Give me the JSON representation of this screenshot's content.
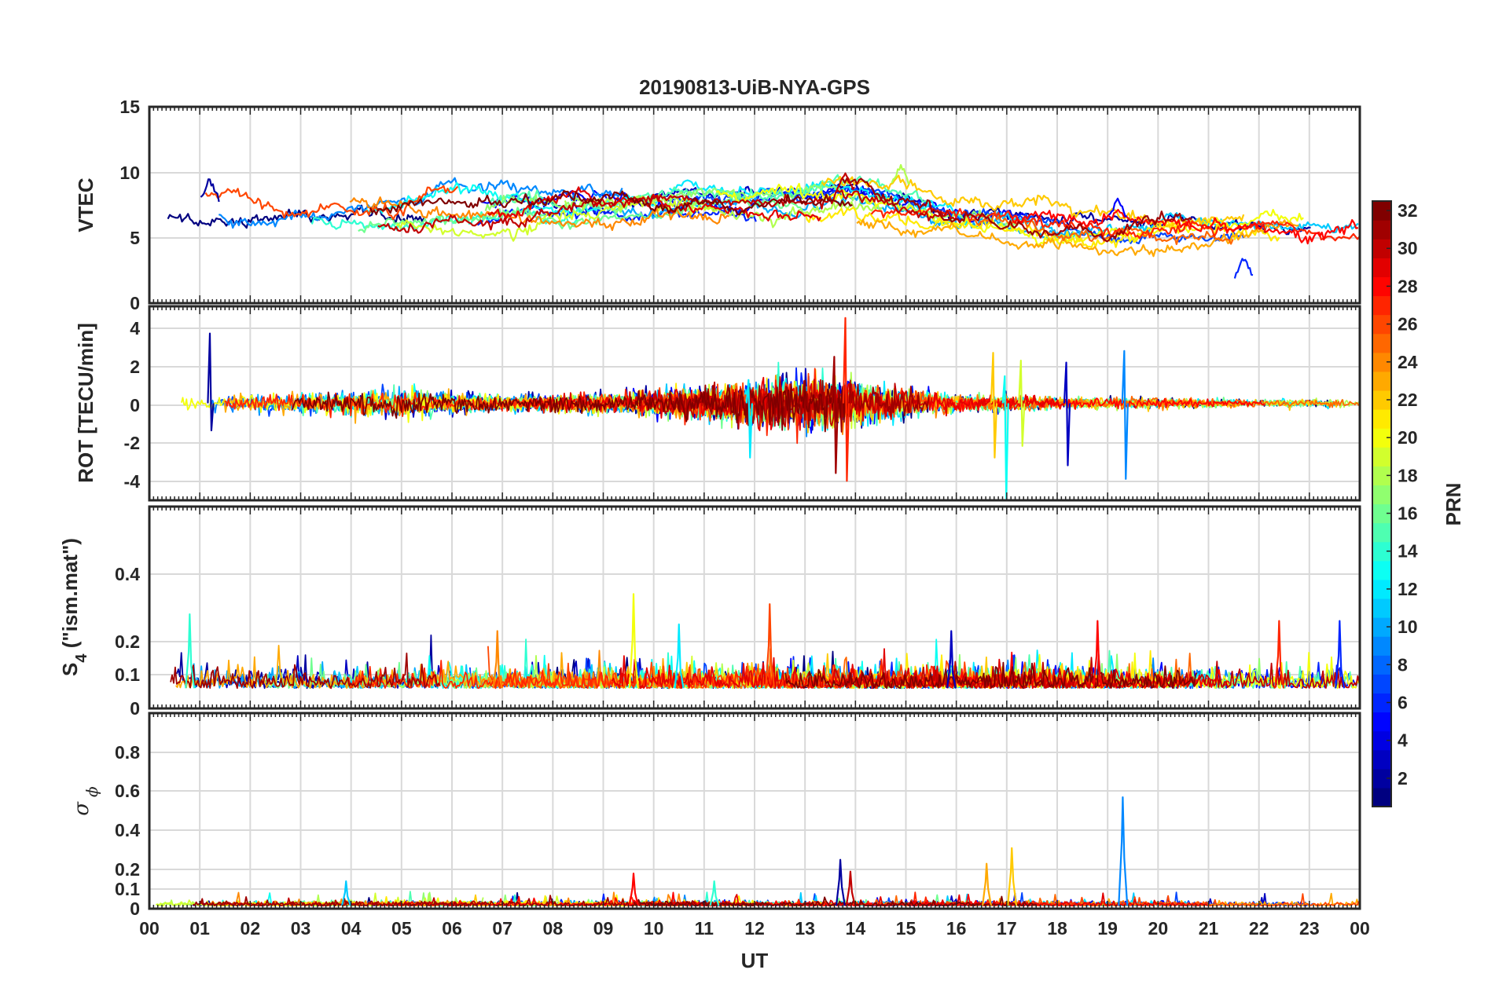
{
  "title": "20190813-UiB-NYA-GPS",
  "x_axis": {
    "label": "UT",
    "ticks": [
      "00",
      "01",
      "02",
      "03",
      "04",
      "05",
      "06",
      "07",
      "08",
      "09",
      "10",
      "11",
      "12",
      "13",
      "14",
      "15",
      "16",
      "17",
      "18",
      "19",
      "20",
      "21",
      "22",
      "23",
      "00"
    ]
  },
  "colorbar": {
    "label": "PRN",
    "ticks": [
      "2",
      "4",
      "6",
      "8",
      "10",
      "12",
      "14",
      "16",
      "18",
      "20",
      "22",
      "24",
      "26",
      "28",
      "30",
      "32"
    ],
    "range": [
      1,
      32
    ],
    "colormap": "jet"
  },
  "panels": [
    {
      "id": "vtec",
      "ylabel": "VTEC",
      "ylabel_parts": [
        "VTEC"
      ],
      "ylim": [
        0,
        15
      ],
      "yticks": [
        "0",
        "5",
        "10",
        "15"
      ]
    },
    {
      "id": "rot",
      "ylabel": "ROT [TECU/min]",
      "ylabel_parts": [
        "ROT [TECU/min]"
      ],
      "ylim": [
        -5,
        5
      ],
      "yticks": [
        "-4",
        "-2",
        "0",
        "2",
        "4"
      ]
    },
    {
      "id": "s4",
      "ylabel": "S4 (\"ism.mat\")",
      "ylabel_parts": [
        "S",
        "4",
        " (\"ism.mat\")"
      ],
      "ylim": [
        0,
        0.6
      ],
      "yticks": [
        "0",
        "0.1",
        "0.2",
        "0.4"
      ]
    },
    {
      "id": "sigphi",
      "ylabel": "σ ϕ",
      "ylabel_parts": [
        "σ",
        "ϕ"
      ],
      "ylim": [
        0,
        1
      ],
      "yticks": [
        "0",
        "0.1",
        "0.2",
        "0.4",
        "0.6",
        "0.8"
      ]
    }
  ],
  "chart_data": [
    {
      "type": "line",
      "panel": "vtec",
      "title": "20190813-UiB-NYA-GPS",
      "ylabel": "VTEC",
      "xlabel": "",
      "xlim": [
        0,
        24
      ],
      "ylim": [
        0,
        15
      ],
      "grid": true,
      "color_by": "PRN (jet colormap, 1-32)",
      "baseline_level": [
        [
          0,
          6.5
        ],
        [
          2,
          6.5
        ],
        [
          4,
          6.8
        ],
        [
          6,
          7.2
        ],
        [
          8,
          7.0
        ],
        [
          10,
          7.4
        ],
        [
          12,
          7.4
        ],
        [
          14,
          7.8
        ],
        [
          16,
          6.6
        ],
        [
          18,
          5.6
        ],
        [
          20,
          5.7
        ],
        [
          22,
          5.8
        ],
        [
          24,
          5.3
        ]
      ],
      "spread": 1.3,
      "highlights": [
        {
          "prn": 2,
          "x": 1.2,
          "y": 9.4
        },
        {
          "prn": 18,
          "x": 14.9,
          "y": 10.6
        },
        {
          "prn": 30,
          "x": 13.8,
          "y": 10.1
        },
        {
          "prn": 5,
          "x": 19.2,
          "y": 8.0
        },
        {
          "prn": 6,
          "x": 21.7,
          "y": 3.5
        }
      ]
    },
    {
      "type": "line",
      "panel": "rot",
      "ylabel": "ROT [TECU/min]",
      "xlim": [
        0,
        24
      ],
      "ylim": [
        -5,
        5
      ],
      "grid": true,
      "color_by": "PRN (jet colormap, 1-32)",
      "noise_amplitude": [
        [
          0,
          0.25
        ],
        [
          3,
          0.4
        ],
        [
          5,
          0.6
        ],
        [
          7,
          0.3
        ],
        [
          9,
          0.4
        ],
        [
          11,
          0.7
        ],
        [
          13,
          1.1
        ],
        [
          14,
          1.0
        ],
        [
          15,
          0.6
        ],
        [
          16,
          0.35
        ],
        [
          18,
          0.25
        ],
        [
          22,
          0.15
        ],
        [
          24,
          0.2
        ]
      ],
      "spikes": [
        {
          "prn": 2,
          "x": 1.22,
          "up": 3.6,
          "down": -1.4
        },
        {
          "prn": 27,
          "x": 13.82,
          "up": 4.4,
          "down": -4.0
        },
        {
          "prn": 31,
          "x": 13.6,
          "up": 2.4,
          "down": -3.6
        },
        {
          "prn": 13,
          "x": 16.98,
          "up": 1.4,
          "down": -4.9
        },
        {
          "prn": 22,
          "x": 16.75,
          "up": 2.6,
          "down": -2.8
        },
        {
          "prn": 19,
          "x": 17.3,
          "up": 2.2,
          "down": -2.2
        },
        {
          "prn": 3,
          "x": 18.2,
          "up": 2.1,
          "down": -3.2
        },
        {
          "prn": 9,
          "x": 19.35,
          "up": 2.7,
          "down": -3.9
        },
        {
          "prn": 12,
          "x": 11.9,
          "up": 1.2,
          "down": -2.8
        }
      ]
    },
    {
      "type": "line",
      "panel": "s4",
      "ylabel": "S4 (\"ism.mat\")",
      "xlim": [
        0,
        24
      ],
      "ylim": [
        0,
        0.6
      ],
      "grid": true,
      "color_by": "PRN (jet colormap, 1-32)",
      "baseline": 0.06,
      "spikes": [
        {
          "prn": 14,
          "x": 0.8,
          "y": 0.28
        },
        {
          "prn": 20,
          "x": 9.6,
          "y": 0.34
        },
        {
          "prn": 26,
          "x": 12.3,
          "y": 0.31
        },
        {
          "prn": 12,
          "x": 10.5,
          "y": 0.25
        },
        {
          "prn": 24,
          "x": 6.9,
          "y": 0.23
        },
        {
          "prn": 6,
          "x": 23.6,
          "y": 0.26
        },
        {
          "prn": 28,
          "x": 18.8,
          "y": 0.26
        },
        {
          "prn": 27,
          "x": 22.4,
          "y": 0.26
        },
        {
          "prn": 3,
          "x": 15.9,
          "y": 0.23
        }
      ]
    },
    {
      "type": "line",
      "panel": "sigphi",
      "ylabel": "σ ϕ",
      "xlim": [
        0,
        24
      ],
      "ylim": [
        0,
        1
      ],
      "grid": true,
      "color_by": "PRN (jet colormap, 1-32)",
      "baseline": 0.015,
      "spikes": [
        {
          "prn": 9,
          "x": 19.3,
          "y": 0.57
        },
        {
          "prn": 22,
          "x": 17.1,
          "y": 0.31
        },
        {
          "prn": 23,
          "x": 16.6,
          "y": 0.23
        },
        {
          "prn": 2,
          "x": 13.7,
          "y": 0.25
        },
        {
          "prn": 28,
          "x": 9.6,
          "y": 0.18
        },
        {
          "prn": 30,
          "x": 13.9,
          "y": 0.19
        },
        {
          "prn": 11,
          "x": 3.9,
          "y": 0.14
        },
        {
          "prn": 14,
          "x": 11.2,
          "y": 0.14
        }
      ]
    }
  ]
}
